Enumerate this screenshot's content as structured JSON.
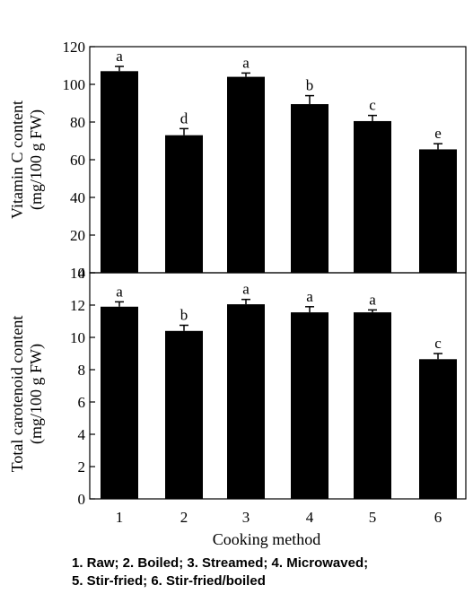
{
  "chart_data": [
    {
      "type": "bar",
      "categories": [
        "1",
        "2",
        "3",
        "4",
        "5",
        "6"
      ],
      "values": [
        107,
        73,
        104,
        89.5,
        80.5,
        65.5
      ],
      "errors": [
        2.5,
        3.5,
        2,
        4.5,
        3,
        3
      ],
      "letters": [
        "a",
        "d",
        "a",
        "b",
        "c",
        "e"
      ],
      "ylabel_line1": "Vitamin C content",
      "ylabel_line2": "(mg/100 g FW)",
      "ylim": [
        0,
        120
      ],
      "yticks": [
        "0",
        "20",
        "40",
        "60",
        "80",
        "100",
        "120"
      ],
      "grid": false
    },
    {
      "type": "bar",
      "categories": [
        "1",
        "2",
        "3",
        "4",
        "5",
        "6"
      ],
      "values": [
        11.9,
        10.4,
        12.05,
        11.55,
        11.55,
        8.65
      ],
      "errors": [
        0.3,
        0.35,
        0.3,
        0.35,
        0.15,
        0.35
      ],
      "letters": [
        "a",
        "b",
        "a",
        "a",
        "a",
        "c"
      ],
      "ylabel_line1": "Total carotenoid content",
      "ylabel_line2": "(mg/100 g FW)",
      "ylim": [
        0,
        14
      ],
      "yticks": [
        "0",
        "2",
        "4",
        "6",
        "8",
        "10",
        "12",
        "14"
      ],
      "grid": false
    }
  ],
  "xlabel": "Cooking method",
  "caption": {
    "line1": "1. Raw; 2. Boiled; 3. Streamed; 4. Microwaved;",
    "line2": "5. Stir-fried; 6. Stir-fried/boiled"
  }
}
